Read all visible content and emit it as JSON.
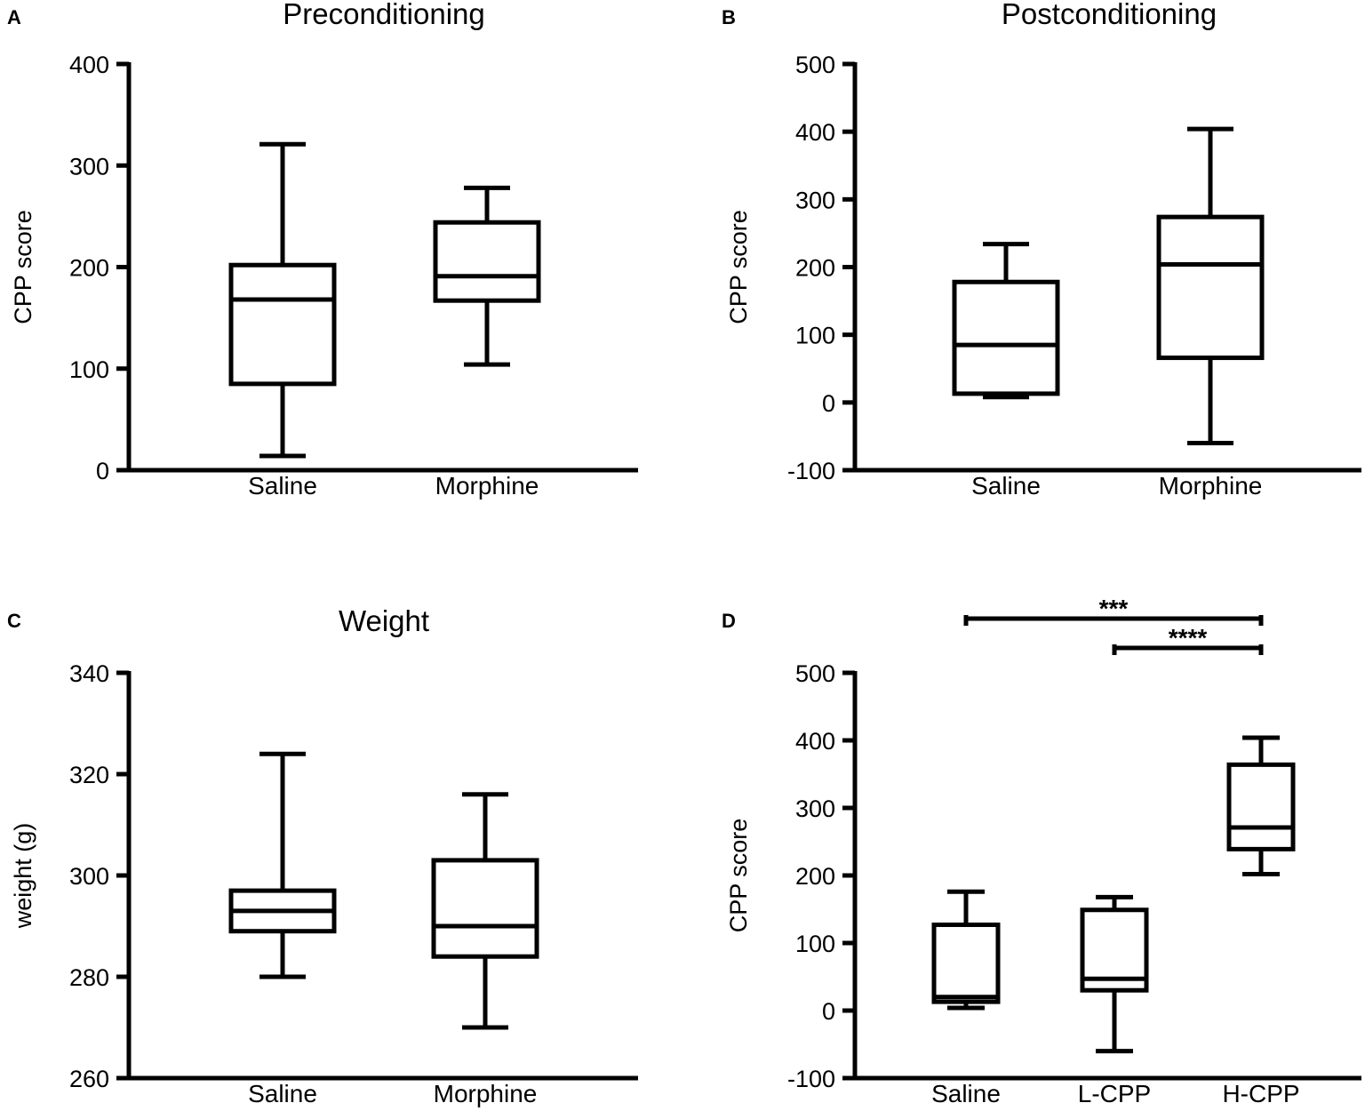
{
  "chart_data": [
    {
      "panel": "A",
      "type": "box",
      "title": "Preconditioning",
      "xlabel": "",
      "ylabel": "CPP score",
      "ylim": [
        0,
        400
      ],
      "yticks": [
        0,
        100,
        200,
        300,
        400
      ],
      "categories": [
        "Saline",
        "Morphine"
      ],
      "boxes": [
        {
          "name": "Saline",
          "min": 14,
          "q1": 85,
          "median": 168,
          "q3": 202,
          "max": 321
        },
        {
          "name": "Morphine",
          "min": 104,
          "q1": 167,
          "median": 191,
          "q3": 244,
          "max": 278
        }
      ],
      "annotations": []
    },
    {
      "panel": "B",
      "type": "box",
      "title": "Postconditioning",
      "xlabel": "",
      "ylabel": "CPP score",
      "ylim": [
        -100,
        500
      ],
      "yticks": [
        -100,
        0,
        100,
        200,
        300,
        400,
        500
      ],
      "categories": [
        "Saline",
        "Morphine"
      ],
      "boxes": [
        {
          "name": "Saline",
          "min": 8,
          "q1": 13,
          "median": 85,
          "q3": 178,
          "max": 234
        },
        {
          "name": "Morphine",
          "min": -60,
          "q1": 66,
          "median": 204,
          "q3": 274,
          "max": 404
        }
      ],
      "annotations": []
    },
    {
      "panel": "C",
      "type": "box",
      "title": "Weight",
      "xlabel": "",
      "ylabel": "weight (g)",
      "ylim": [
        260,
        340
      ],
      "yticks": [
        260,
        280,
        300,
        320,
        340
      ],
      "categories": [
        "Saline",
        "Morphine"
      ],
      "boxes": [
        {
          "name": "Saline",
          "min": 280,
          "q1": 289,
          "median": 293,
          "q3": 297,
          "max": 324
        },
        {
          "name": "Morphine",
          "min": 270,
          "q1": 284,
          "median": 290,
          "q3": 303,
          "max": 316
        }
      ],
      "annotations": []
    },
    {
      "panel": "D",
      "type": "box",
      "title": "",
      "xlabel": "",
      "ylabel": "CPP score",
      "ylim": [
        -100,
        500
      ],
      "yticks": [
        -100,
        0,
        100,
        200,
        300,
        400,
        500
      ],
      "categories": [
        "Saline",
        "L-CPP",
        "H-CPP"
      ],
      "boxes": [
        {
          "name": "Saline",
          "min": 4,
          "q1": 13,
          "median": 20,
          "q3": 127,
          "max": 176
        },
        {
          "name": "L-CPP",
          "min": -60,
          "q1": 30,
          "median": 47,
          "q3": 149,
          "max": 168
        },
        {
          "name": "H-CPP",
          "min": 202,
          "q1": 239,
          "median": 271,
          "q3": 364,
          "max": 404
        }
      ],
      "annotations": [
        {
          "from": "Saline",
          "to": "H-CPP",
          "label": "***"
        },
        {
          "from": "L-CPP",
          "to": "H-CPP",
          "label": "****"
        }
      ]
    }
  ]
}
